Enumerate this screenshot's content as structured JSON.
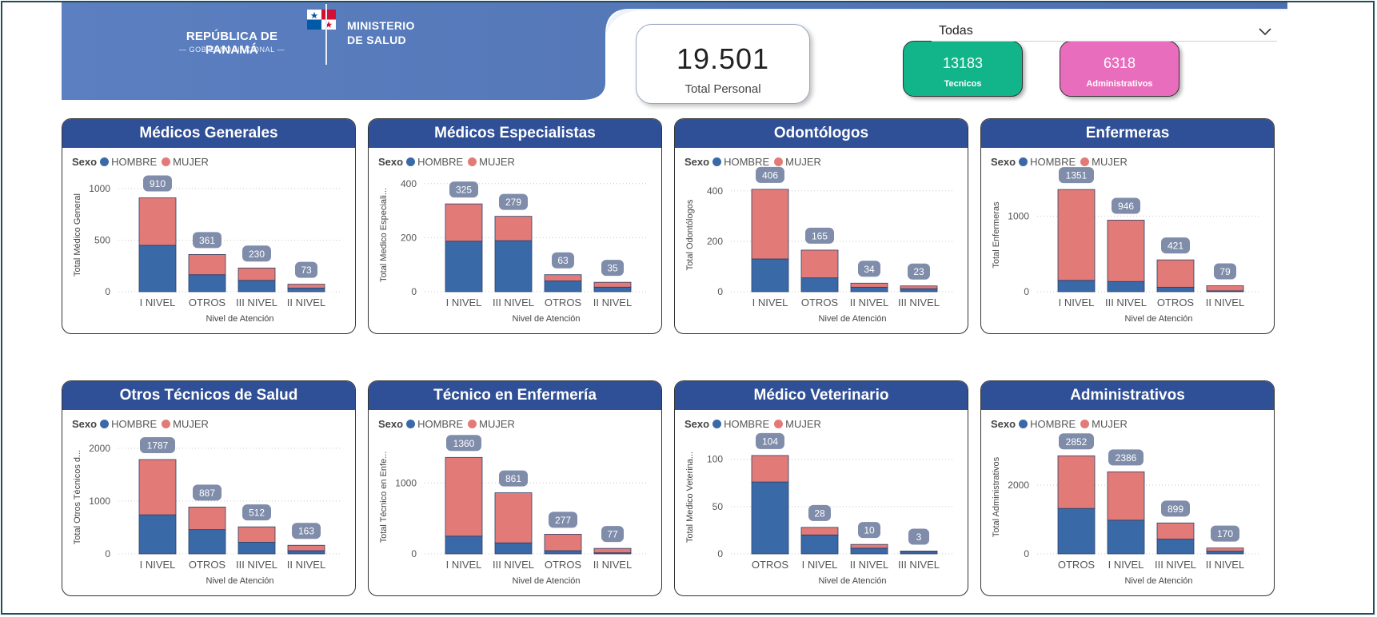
{
  "header": {
    "republic": "REPÚBLICA DE PANAMÁ",
    "government": "— GOBIERNO NACIONAL —",
    "ministry_line1": "MINISTERIO",
    "ministry_line2": "DE SALUD"
  },
  "kpis": {
    "total_value": "19.501",
    "total_label": "Total Personal",
    "tecnicos_value": "13183",
    "tecnicos_label": "Tecnicos",
    "administrativos_value": "6318",
    "administrativos_label": "Administrativos"
  },
  "slicer": {
    "selected": "Todas",
    "icon": "chevron-down-icon"
  },
  "colors": {
    "hombre": "#3a69a8",
    "mujer": "#e27b78",
    "title_bar": "#2f4f96",
    "label_pill": "#7f8caa"
  },
  "legend": {
    "title": "Sexo",
    "hombre": "HOMBRE",
    "mujer": "MUJER"
  },
  "chart_data": [
    {
      "type": "bar",
      "stacked": true,
      "title": "Médicos Generales",
      "xlabel": "Nivel de Atención",
      "ylabel": "Total Médico General",
      "ylim": [
        0,
        1100
      ],
      "yticks": [
        0,
        500,
        1000
      ],
      "categories": [
        "I NIVEL",
        "OTROS",
        "III NIVEL",
        "II NIVEL"
      ],
      "totals": [
        910,
        361,
        230,
        73
      ],
      "series": [
        {
          "name": "HOMBRE",
          "values": [
            450,
            165,
            110,
            35
          ]
        },
        {
          "name": "MUJER",
          "values": [
            460,
            196,
            120,
            38
          ]
        }
      ]
    },
    {
      "type": "bar",
      "stacked": true,
      "title": "Médicos Especialistas",
      "xlabel": "Nivel de Atención",
      "ylabel": "Total Medico Especiali...",
      "ylim": [
        0,
        420
      ],
      "yticks": [
        0,
        200,
        400
      ],
      "categories": [
        "I NIVEL",
        "III NIVEL",
        "OTROS",
        "II NIVEL"
      ],
      "totals": [
        325,
        279,
        63,
        35
      ],
      "series": [
        {
          "name": "HOMBRE",
          "values": [
            187,
            189,
            40,
            17
          ]
        },
        {
          "name": "MUJER",
          "values": [
            138,
            90,
            23,
            18
          ]
        }
      ]
    },
    {
      "type": "bar",
      "stacked": true,
      "title": "Odontólogos",
      "xlabel": "Nivel de Atención",
      "ylabel": "Total Odontólogos",
      "ylim": [
        0,
        450
      ],
      "yticks": [
        0,
        200,
        400
      ],
      "categories": [
        "I NIVEL",
        "OTROS",
        "II NIVEL",
        "III NIVEL"
      ],
      "totals": [
        406,
        165,
        34,
        23
      ],
      "series": [
        {
          "name": "HOMBRE",
          "values": [
            130,
            55,
            18,
            12
          ]
        },
        {
          "name": "MUJER",
          "values": [
            276,
            110,
            16,
            11
          ]
        }
      ]
    },
    {
      "type": "bar",
      "stacked": true,
      "title": "Enfermeras",
      "xlabel": "Nivel de Atención",
      "ylabel": "Total Enfermeras",
      "ylim": [
        0,
        1500
      ],
      "yticks": [
        0,
        1000
      ],
      "categories": [
        "I NIVEL",
        "III NIVEL",
        "OTROS",
        "II NIVEL"
      ],
      "totals": [
        1351,
        946,
        421,
        79
      ],
      "series": [
        {
          "name": "HOMBRE",
          "values": [
            150,
            135,
            60,
            12
          ]
        },
        {
          "name": "MUJER",
          "values": [
            1201,
            811,
            361,
            67
          ]
        }
      ]
    },
    {
      "type": "bar",
      "stacked": true,
      "title": "Otros Técnicos de Salud",
      "xlabel": "Nivel de Atención",
      "ylabel": "Total Otros Técnicos d...",
      "ylim": [
        0,
        2150
      ],
      "yticks": [
        0,
        1000,
        2000
      ],
      "categories": [
        "I NIVEL",
        "OTROS",
        "III NIVEL",
        "II NIVEL"
      ],
      "totals": [
        1787,
        887,
        512,
        163
      ],
      "series": [
        {
          "name": "HOMBRE",
          "values": [
            740,
            460,
            220,
            60
          ]
        },
        {
          "name": "MUJER",
          "values": [
            1047,
            427,
            292,
            103
          ]
        }
      ]
    },
    {
      "type": "bar",
      "stacked": true,
      "title": "Técnico en Enfermería",
      "xlabel": "Nivel de Atención",
      "ylabel": "Total Técnico en Enfe...",
      "ylim": [
        0,
        1600
      ],
      "yticks": [
        0,
        1000
      ],
      "categories": [
        "I NIVEL",
        "III NIVEL",
        "OTROS",
        "II NIVEL"
      ],
      "totals": [
        1360,
        861,
        277,
        77
      ],
      "series": [
        {
          "name": "HOMBRE",
          "values": [
            250,
            155,
            45,
            15
          ]
        },
        {
          "name": "MUJER",
          "values": [
            1110,
            706,
            232,
            62
          ]
        }
      ]
    },
    {
      "type": "bar",
      "stacked": true,
      "title": "Médico Veterinario",
      "xlabel": "Nivel de Atención",
      "ylabel": "Total Medico Veterina...",
      "ylim": [
        0,
        120
      ],
      "yticks": [
        0,
        50,
        100
      ],
      "categories": [
        "OTROS",
        "I NIVEL",
        "II NIVEL",
        "III NIVEL"
      ],
      "totals": [
        104,
        28,
        10,
        3
      ],
      "series": [
        {
          "name": "HOMBRE",
          "values": [
            76,
            20,
            6,
            2
          ]
        },
        {
          "name": "MUJER",
          "values": [
            28,
            8,
            4,
            1
          ]
        }
      ]
    },
    {
      "type": "bar",
      "stacked": true,
      "title": "Administrativos",
      "xlabel": "Nivel de Atención",
      "ylabel": "Total Administrativos",
      "ylim": [
        0,
        3300
      ],
      "yticks": [
        0,
        2000
      ],
      "categories": [
        "OTROS",
        "I NIVEL",
        "III NIVEL",
        "II NIVEL"
      ],
      "totals": [
        2852,
        2386,
        899,
        170
      ],
      "series": [
        {
          "name": "HOMBRE",
          "values": [
            1320,
            980,
            430,
            80
          ]
        },
        {
          "name": "MUJER",
          "values": [
            1532,
            1406,
            469,
            90
          ]
        }
      ]
    }
  ]
}
